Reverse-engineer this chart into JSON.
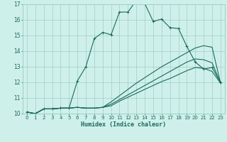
{
  "xlabel": "Humidex (Indice chaleur)",
  "ylabel": "",
  "bg_color": "#cff0ea",
  "grid_color": "#9ecec7",
  "line_color": "#1a6b5a",
  "xlim": [
    -0.5,
    23.5
  ],
  "ylim": [
    10,
    17
  ],
  "xticks": [
    0,
    1,
    2,
    3,
    4,
    5,
    6,
    7,
    8,
    9,
    10,
    11,
    12,
    13,
    14,
    15,
    16,
    17,
    18,
    19,
    20,
    21,
    22,
    23
  ],
  "yticks": [
    10,
    11,
    12,
    13,
    14,
    15,
    16,
    17
  ],
  "line1_x": [
    0,
    1,
    2,
    3,
    4,
    5,
    6,
    7,
    8,
    9,
    10,
    11,
    12,
    13,
    14,
    15,
    16,
    17,
    18,
    19,
    20,
    21,
    22,
    23
  ],
  "line1_y": [
    10.1,
    10.0,
    10.3,
    10.3,
    10.35,
    10.35,
    12.1,
    13.0,
    14.8,
    15.2,
    15.05,
    16.5,
    16.5,
    17.25,
    17.05,
    15.9,
    16.05,
    15.5,
    15.45,
    14.3,
    13.3,
    12.85,
    12.95,
    12.0
  ],
  "line2_x": [
    0,
    1,
    2,
    3,
    4,
    5,
    6,
    7,
    8,
    9,
    10,
    11,
    12,
    13,
    14,
    15,
    16,
    17,
    18,
    19,
    20,
    21,
    22,
    23
  ],
  "line2_y": [
    10.1,
    10.0,
    10.3,
    10.3,
    10.35,
    10.35,
    10.4,
    10.35,
    10.35,
    10.4,
    10.75,
    11.15,
    11.55,
    11.95,
    12.3,
    12.65,
    13.0,
    13.3,
    13.6,
    13.9,
    14.2,
    14.35,
    14.25,
    11.95
  ],
  "line3_x": [
    0,
    1,
    2,
    3,
    4,
    5,
    6,
    7,
    8,
    9,
    10,
    11,
    12,
    13,
    14,
    15,
    16,
    17,
    18,
    19,
    20,
    21,
    22,
    23
  ],
  "line3_y": [
    10.1,
    10.0,
    10.3,
    10.3,
    10.35,
    10.35,
    10.4,
    10.35,
    10.35,
    10.4,
    10.6,
    10.9,
    11.2,
    11.5,
    11.8,
    12.1,
    12.4,
    12.7,
    13.0,
    13.3,
    13.5,
    13.45,
    13.25,
    11.95
  ],
  "line4_x": [
    0,
    1,
    2,
    3,
    4,
    5,
    6,
    7,
    8,
    9,
    10,
    11,
    12,
    13,
    14,
    15,
    16,
    17,
    18,
    19,
    20,
    21,
    22,
    23
  ],
  "line4_y": [
    10.1,
    10.0,
    10.3,
    10.3,
    10.35,
    10.35,
    10.4,
    10.35,
    10.35,
    10.4,
    10.5,
    10.8,
    11.05,
    11.3,
    11.55,
    11.8,
    12.05,
    12.25,
    12.5,
    12.75,
    12.95,
    12.9,
    12.7,
    11.95
  ]
}
